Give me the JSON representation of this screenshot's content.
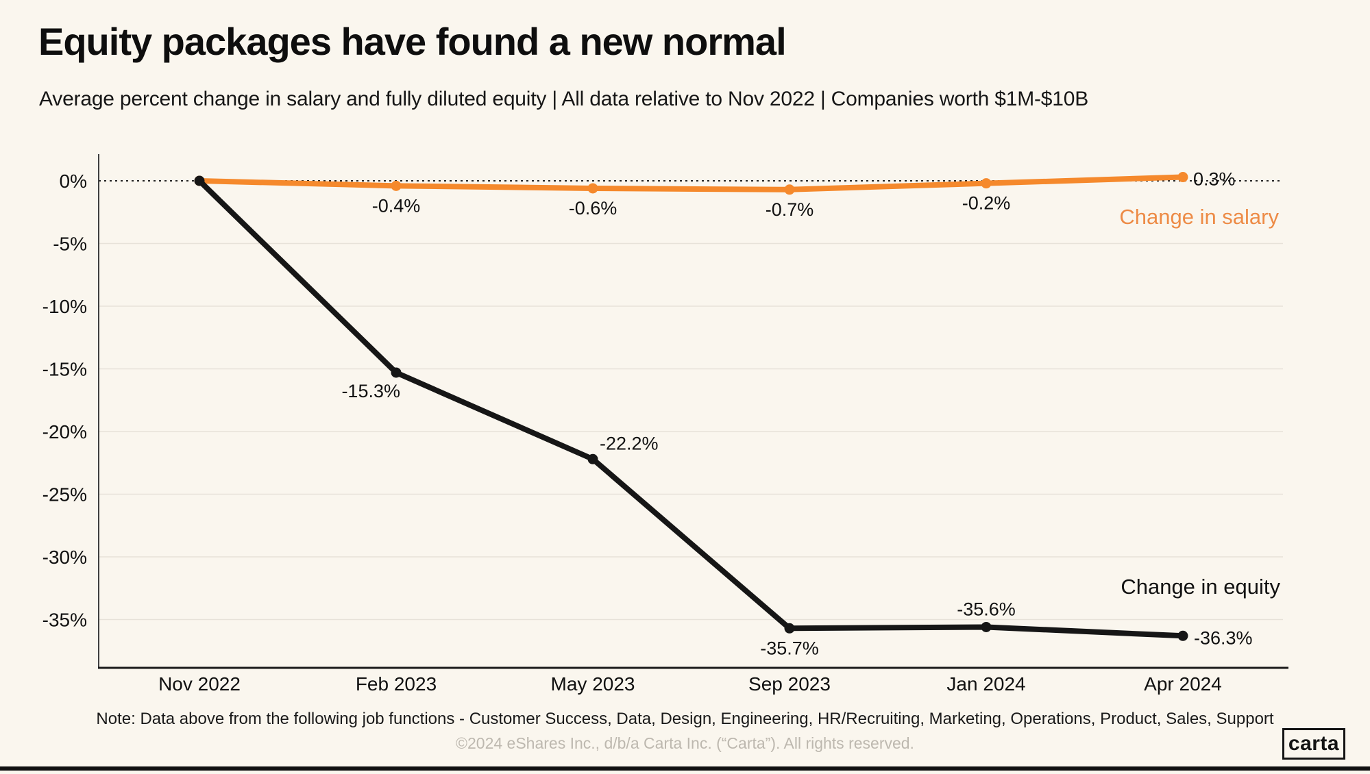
{
  "header": {
    "title": "Equity packages have found a new normal",
    "subtitle": "Average percent change in salary and fully diluted equity | All data relative to Nov 2022 | Companies worth $1M-$10B"
  },
  "chart_data": {
    "type": "line",
    "x_categories": [
      "Nov 2022",
      "Feb 2023",
      "May 2023",
      "Sep 2023",
      "Jan 2024",
      "Apr 2024"
    ],
    "y_ticks": [
      "0%",
      "-5%",
      "-10%",
      "-15%",
      "-20%",
      "-25%",
      "-30%",
      "-35%"
    ],
    "y_tick_values": [
      0,
      -5,
      -10,
      -15,
      -20,
      -25,
      -30,
      -35
    ],
    "ylim": [
      -38.9,
      2.1
    ],
    "grid": "horizontal-light",
    "zero_line": "dotted-black",
    "legend_position": "inline-right",
    "series": [
      {
        "name": "Change in salary",
        "color": "#F5892C",
        "name_color": "#ED8B46",
        "values": [
          0,
          -0.4,
          -0.6,
          -0.7,
          -0.2,
          0.3
        ],
        "point_labels": [
          "",
          "-0.4%",
          "-0.6%",
          "-0.7%",
          "-0.2%",
          "0.3%"
        ]
      },
      {
        "name": "Change in equity",
        "color": "#161616",
        "name_color": "#111111",
        "values": [
          0,
          -15.3,
          -22.2,
          -35.7,
          -35.6,
          -36.3
        ],
        "point_labels": [
          "",
          "-15.3%",
          "-22.2%",
          "-35.7%",
          "-35.6%",
          "-36.3%"
        ]
      }
    ]
  },
  "footer": {
    "note": "Note: Data above from the following job functions - Customer Success, Data, Design, Engineering, HR/Recruiting, Marketing, Operations, Product, Sales, Support",
    "copyright": "©2024 eShares Inc., d/b/a Carta Inc. (“Carta”). All rights reserved.",
    "logo_text": "carta"
  },
  "colors": {
    "background": "#FAF6EE",
    "text": "#111111",
    "gridline": "#E7E2D9",
    "zero_line": "#222222",
    "y_axis": "#3F3F3F",
    "x_axis": "#1A1A1A",
    "value_label": "#111111",
    "muted": "#BDB8AF"
  }
}
